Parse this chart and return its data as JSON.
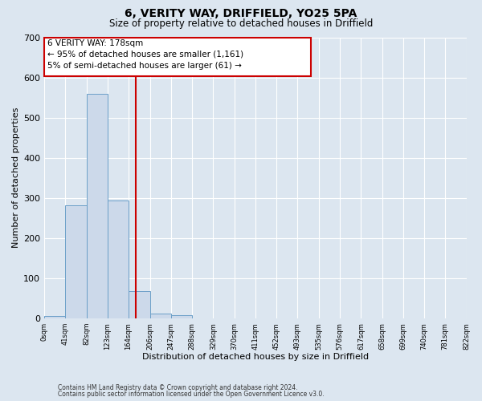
{
  "title": "6, VERITY WAY, DRIFFIELD, YO25 5PA",
  "subtitle": "Size of property relative to detached houses in Driffield",
  "xlabel": "Distribution of detached houses by size in Driffield",
  "ylabel": "Number of detached properties",
  "bin_edges": [
    0,
    41,
    82,
    123,
    164,
    206,
    247,
    288,
    329,
    370,
    411,
    452,
    493,
    535,
    576,
    617,
    658,
    699,
    740,
    781,
    822
  ],
  "bin_heights": [
    7,
    282,
    560,
    293,
    68,
    13,
    8,
    0,
    0,
    0,
    0,
    0,
    0,
    0,
    0,
    0,
    0,
    0,
    0,
    0
  ],
  "bar_facecolor": "#ccd9ea",
  "bar_edgecolor": "#6b9fc8",
  "property_line_x": 178,
  "property_line_color": "#cc0000",
  "ylim": [
    0,
    700
  ],
  "yticks": [
    0,
    100,
    200,
    300,
    400,
    500,
    600,
    700
  ],
  "annotation_title": "6 VERITY WAY: 178sqm",
  "annotation_line1": "← 95% of detached houses are smaller (1,161)",
  "annotation_line2": "5% of semi-detached houses are larger (61) →",
  "annotation_box_facecolor": "#ffffff",
  "annotation_box_edgecolor": "#cc0000",
  "footer_line1": "Contains HM Land Registry data © Crown copyright and database right 2024.",
  "footer_line2": "Contains public sector information licensed under the Open Government Licence v3.0.",
  "tick_labels": [
    "0sqm",
    "41sqm",
    "82sqm",
    "123sqm",
    "164sqm",
    "206sqm",
    "247sqm",
    "288sqm",
    "329sqm",
    "370sqm",
    "411sqm",
    "452sqm",
    "493sqm",
    "535sqm",
    "576sqm",
    "617sqm",
    "658sqm",
    "699sqm",
    "740sqm",
    "781sqm",
    "822sqm"
  ],
  "background_color": "#dce6f0",
  "plot_background_color": "#dce6f0",
  "grid_color": "#ffffff"
}
